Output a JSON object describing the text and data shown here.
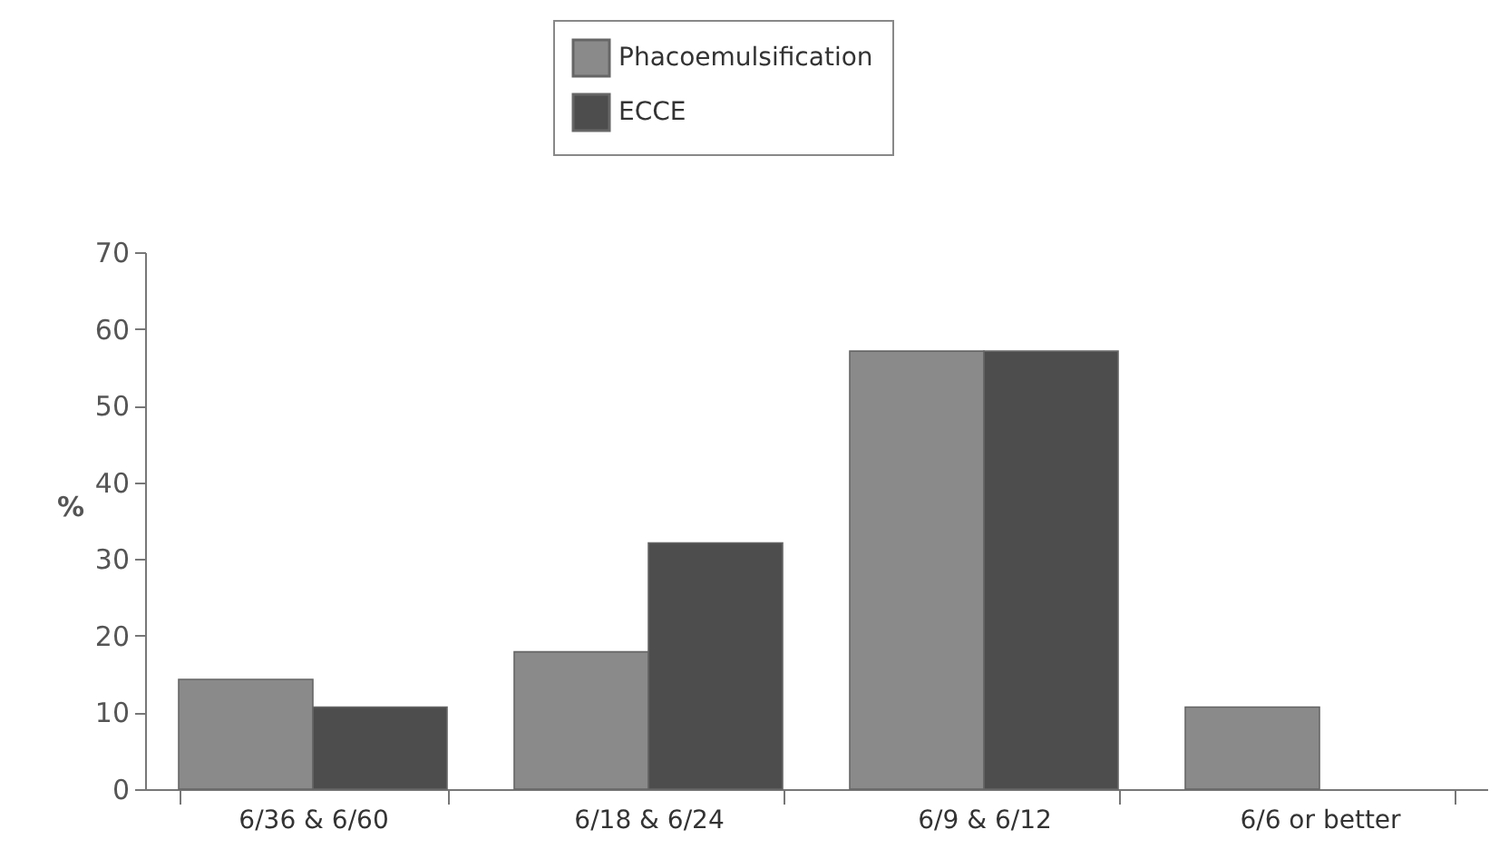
{
  "chart_data": {
    "type": "bar",
    "ylabel": "%",
    "categories": [
      "6/36 & 6/60",
      "6/18 & 6/24",
      "6/9 & 6/12",
      "6/6 or better"
    ],
    "series": [
      {
        "name": "Phacoemulsification",
        "color": "#8a8a8a",
        "values": [
          14.3,
          17.9,
          57.1,
          10.7
        ]
      },
      {
        "name": "ECCE",
        "color": "#4d4d4d",
        "values": [
          10.7,
          32.1,
          57.1,
          0
        ]
      }
    ],
    "ylim": [
      0,
      70
    ],
    "yticks": [
      0,
      10,
      20,
      30,
      40,
      50,
      60,
      70
    ],
    "grid": false,
    "legend": "top"
  }
}
